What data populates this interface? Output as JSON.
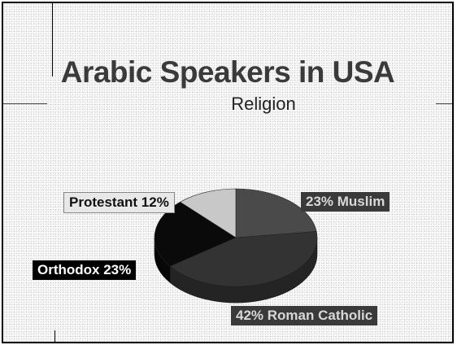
{
  "chart_data": {
    "type": "pie",
    "title": "Arabic Speakers in USA",
    "subtitle": "Religion",
    "slices": [
      {
        "label": "23% Muslim",
        "value": 23,
        "color": "#4a4a4a"
      },
      {
        "label": "42% Roman Catholic",
        "value": 42,
        "color": "#333333"
      },
      {
        "label": "Orthodox 23%",
        "value": 23,
        "color": "#0a0a0a"
      },
      {
        "label": "Protestant 12%",
        "value": 12,
        "color": "#c8c8c8"
      }
    ]
  }
}
